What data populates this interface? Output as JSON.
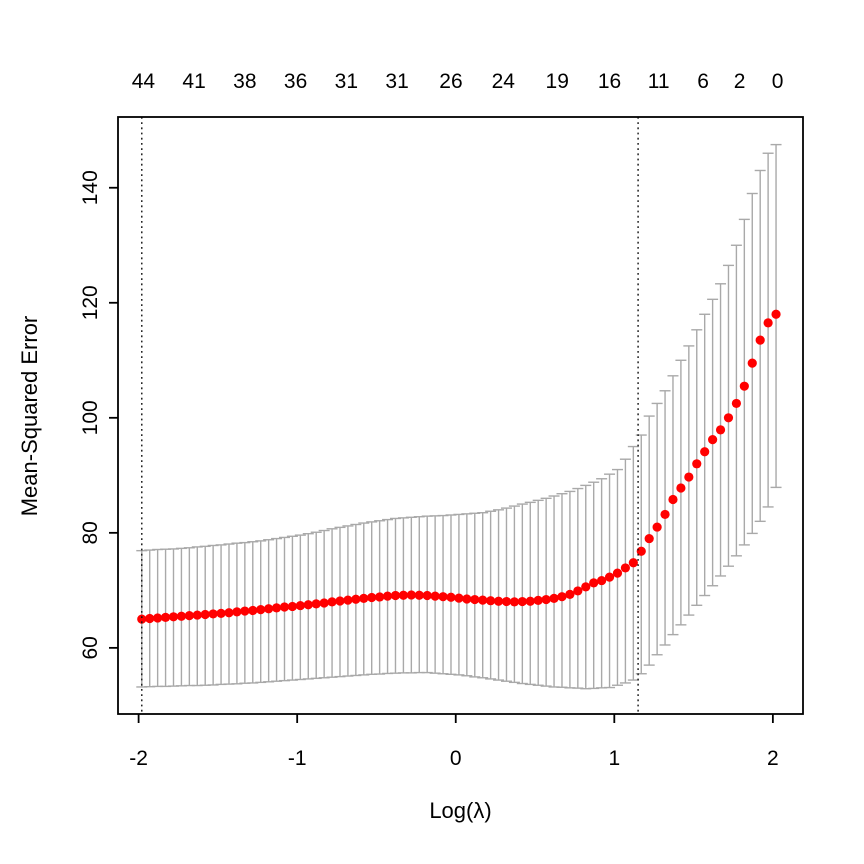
{
  "chart_data": {
    "type": "scatter",
    "title": "",
    "xlabel": "Log(λ)",
    "ylabel": "Mean-Squared Error",
    "xlim": [
      -2.13,
      2.19
    ],
    "ylim": [
      48.5,
      152.3
    ],
    "x_ticks": [
      -2,
      -1,
      0,
      1,
      2
    ],
    "y_ticks": [
      60,
      80,
      100,
      120,
      140
    ],
    "grid": false,
    "legend": null,
    "top_axis": {
      "labels": [
        "44",
        "41",
        "38",
        "36",
        "31",
        "31",
        "26",
        "24",
        "19",
        "16",
        "11",
        "6",
        "2",
        "0"
      ],
      "positions": [
        -1.97,
        -1.65,
        -1.33,
        -1.01,
        -0.69,
        -0.37,
        -0.03,
        0.3,
        0.64,
        0.97,
        1.28,
        1.56,
        1.79,
        2.03
      ]
    },
    "vlines": [
      {
        "name": "left-dotted-line",
        "x": -1.98
      },
      {
        "name": "right-dotted-line",
        "x": 1.15
      }
    ],
    "point_color": "#ff0000",
    "errorbar_color": "#a9a9a9",
    "axis_color": "#000000",
    "vline_color": "#111111",
    "points": {
      "x": [
        -1.98,
        -1.93,
        -1.88,
        -1.83,
        -1.78,
        -1.73,
        -1.68,
        -1.63,
        -1.58,
        -1.53,
        -1.48,
        -1.43,
        -1.38,
        -1.33,
        -1.28,
        -1.23,
        -1.18,
        -1.13,
        -1.08,
        -1.03,
        -0.98,
        -0.93,
        -0.88,
        -0.83,
        -0.78,
        -0.73,
        -0.68,
        -0.63,
        -0.58,
        -0.53,
        -0.48,
        -0.43,
        -0.38,
        -0.33,
        -0.28,
        -0.23,
        -0.18,
        -0.13,
        -0.08,
        -0.03,
        0.02,
        0.07,
        0.12,
        0.17,
        0.22,
        0.27,
        0.32,
        0.37,
        0.42,
        0.47,
        0.52,
        0.57,
        0.62,
        0.67,
        0.72,
        0.77,
        0.82,
        0.87,
        0.92,
        0.97,
        1.02,
        1.07,
        1.12,
        1.17,
        1.22,
        1.27,
        1.32,
        1.37,
        1.42,
        1.47,
        1.52,
        1.57,
        1.62,
        1.67,
        1.72,
        1.77,
        1.82,
        1.87,
        1.92,
        1.97,
        2.02
      ],
      "mean": [
        65.0,
        65.1,
        65.2,
        65.3,
        65.4,
        65.5,
        65.6,
        65.7,
        65.8,
        65.9,
        66.0,
        66.1,
        66.25,
        66.4,
        66.5,
        66.65,
        66.8,
        66.95,
        67.1,
        67.2,
        67.35,
        67.5,
        67.65,
        67.8,
        68.0,
        68.15,
        68.3,
        68.45,
        68.6,
        68.75,
        68.85,
        69.0,
        69.1,
        69.15,
        69.2,
        69.15,
        69.1,
        69.0,
        68.9,
        68.8,
        68.65,
        68.5,
        68.4,
        68.3,
        68.2,
        68.1,
        68.05,
        68.0,
        68.05,
        68.1,
        68.25,
        68.4,
        68.6,
        68.9,
        69.3,
        69.9,
        70.6,
        71.3,
        71.7,
        72.3,
        73.0,
        73.9,
        74.8,
        76.8,
        79.0,
        81.0,
        83.2,
        85.8,
        87.8,
        89.7,
        92.0,
        94.1,
        96.2,
        97.9,
        100.0,
        102.5,
        105.5,
        109.5,
        113.5,
        116.5,
        118.0
      ],
      "upper": [
        76.9,
        77.0,
        77.1,
        77.15,
        77.2,
        77.3,
        77.4,
        77.55,
        77.65,
        77.8,
        77.9,
        78.05,
        78.2,
        78.3,
        78.45,
        78.6,
        78.8,
        79.0,
        79.2,
        79.4,
        79.6,
        79.85,
        80.1,
        80.4,
        80.7,
        80.95,
        81.2,
        81.45,
        81.7,
        81.9,
        82.1,
        82.3,
        82.5,
        82.6,
        82.7,
        82.8,
        82.9,
        82.95,
        83.0,
        83.1,
        83.2,
        83.3,
        83.4,
        83.5,
        83.75,
        84.0,
        84.3,
        84.65,
        85.0,
        85.3,
        85.65,
        86.0,
        86.4,
        86.8,
        87.2,
        87.7,
        88.25,
        88.8,
        89.4,
        90.2,
        91.0,
        92.8,
        95.0,
        97.0,
        100.3,
        102.5,
        104.7,
        107.3,
        110.0,
        112.5,
        115.3,
        118.0,
        120.6,
        123.3,
        126.5,
        130.0,
        134.5,
        139.0,
        143.0,
        146.0,
        147.5
      ],
      "lower": [
        53.2,
        53.25,
        53.3,
        53.3,
        53.35,
        53.4,
        53.45,
        53.45,
        53.5,
        53.55,
        53.65,
        53.7,
        53.75,
        53.85,
        53.9,
        54.0,
        54.1,
        54.2,
        54.3,
        54.4,
        54.5,
        54.6,
        54.7,
        54.8,
        54.9,
        55.0,
        55.1,
        55.2,
        55.3,
        55.4,
        55.45,
        55.55,
        55.6,
        55.65,
        55.65,
        55.7,
        55.7,
        55.6,
        55.5,
        55.4,
        55.3,
        55.15,
        54.95,
        54.8,
        54.6,
        54.4,
        54.2,
        54.0,
        53.8,
        53.65,
        53.5,
        53.35,
        53.2,
        53.15,
        53.05,
        53.0,
        52.9,
        52.95,
        53.05,
        53.1,
        53.5,
        53.9,
        54.4,
        55.5,
        57.0,
        58.8,
        60.5,
        62.3,
        64.0,
        65.7,
        67.4,
        69.1,
        70.8,
        72.5,
        74.2,
        76.0,
        77.9,
        79.9,
        82.0,
        84.5,
        87.9
      ]
    }
  }
}
